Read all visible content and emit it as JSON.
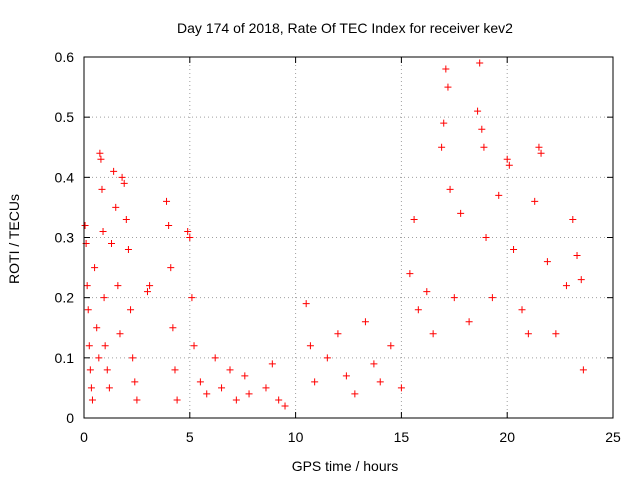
{
  "chart_data": {
    "type": "scatter",
    "title": "Day 174 of 2018, Rate Of TEC Index for receiver kev2",
    "xlabel": "GPS time / hours",
    "ylabel": "ROTI / TECUs",
    "xlim": [
      0,
      25
    ],
    "ylim": [
      0,
      0.6
    ],
    "xticks": [
      0,
      5,
      10,
      15,
      20,
      25
    ],
    "yticks": [
      0,
      0.1,
      0.2,
      0.3,
      0.4,
      0.5,
      0.6
    ],
    "xtick_labels": [
      "0",
      "5",
      "10",
      "15",
      "20",
      "25"
    ],
    "ytick_labels": [
      "0",
      "0.1",
      "0.2",
      "0.3",
      "0.4",
      "0.5",
      "0.6"
    ],
    "grid": true,
    "marker": "+",
    "series": [
      {
        "color": "#ff0000",
        "points": [
          [
            0.05,
            0.32
          ],
          [
            0.1,
            0.29
          ],
          [
            0.15,
            0.22
          ],
          [
            0.2,
            0.18
          ],
          [
            0.25,
            0.12
          ],
          [
            0.3,
            0.08
          ],
          [
            0.35,
            0.05
          ],
          [
            0.4,
            0.03
          ],
          [
            0.5,
            0.25
          ],
          [
            0.6,
            0.15
          ],
          [
            0.7,
            0.1
          ],
          [
            0.75,
            0.44
          ],
          [
            0.8,
            0.43
          ],
          [
            0.85,
            0.38
          ],
          [
            0.9,
            0.31
          ],
          [
            0.95,
            0.2
          ],
          [
            1.0,
            0.12
          ],
          [
            1.1,
            0.08
          ],
          [
            1.2,
            0.05
          ],
          [
            1.3,
            0.29
          ],
          [
            1.4,
            0.41
          ],
          [
            1.5,
            0.35
          ],
          [
            1.6,
            0.22
          ],
          [
            1.7,
            0.14
          ],
          [
            1.8,
            0.4
          ],
          [
            1.9,
            0.39
          ],
          [
            2.0,
            0.33
          ],
          [
            2.1,
            0.28
          ],
          [
            2.2,
            0.18
          ],
          [
            2.3,
            0.1
          ],
          [
            2.4,
            0.06
          ],
          [
            2.5,
            0.03
          ],
          [
            3.0,
            0.21
          ],
          [
            3.1,
            0.22
          ],
          [
            3.9,
            0.36
          ],
          [
            4.0,
            0.32
          ],
          [
            4.1,
            0.25
          ],
          [
            4.2,
            0.15
          ],
          [
            4.3,
            0.08
          ],
          [
            4.4,
            0.03
          ],
          [
            4.9,
            0.31
          ],
          [
            5.0,
            0.3
          ],
          [
            5.1,
            0.2
          ],
          [
            5.2,
            0.12
          ],
          [
            5.5,
            0.06
          ],
          [
            5.8,
            0.04
          ],
          [
            6.2,
            0.1
          ],
          [
            6.5,
            0.05
          ],
          [
            6.9,
            0.08
          ],
          [
            7.2,
            0.03
          ],
          [
            7.6,
            0.07
          ],
          [
            7.8,
            0.04
          ],
          [
            8.6,
            0.05
          ],
          [
            8.9,
            0.09
          ],
          [
            9.2,
            0.03
          ],
          [
            9.5,
            0.02
          ],
          [
            10.5,
            0.19
          ],
          [
            10.7,
            0.12
          ],
          [
            10.9,
            0.06
          ],
          [
            11.5,
            0.1
          ],
          [
            12.0,
            0.14
          ],
          [
            12.4,
            0.07
          ],
          [
            12.8,
            0.04
          ],
          [
            13.3,
            0.16
          ],
          [
            13.7,
            0.09
          ],
          [
            14.0,
            0.06
          ],
          [
            14.5,
            0.12
          ],
          [
            15.0,
            0.05
          ],
          [
            15.4,
            0.24
          ],
          [
            15.6,
            0.33
          ],
          [
            15.8,
            0.18
          ],
          [
            16.2,
            0.21
          ],
          [
            16.5,
            0.14
          ],
          [
            16.9,
            0.45
          ],
          [
            17.0,
            0.49
          ],
          [
            17.1,
            0.58
          ],
          [
            17.2,
            0.55
          ],
          [
            17.3,
            0.38
          ],
          [
            17.5,
            0.2
          ],
          [
            17.8,
            0.34
          ],
          [
            18.2,
            0.16
          ],
          [
            18.6,
            0.51
          ],
          [
            18.7,
            0.59
          ],
          [
            18.8,
            0.48
          ],
          [
            18.9,
            0.45
          ],
          [
            19.0,
            0.3
          ],
          [
            19.3,
            0.2
          ],
          [
            19.6,
            0.37
          ],
          [
            20.0,
            0.43
          ],
          [
            20.1,
            0.42
          ],
          [
            20.3,
            0.28
          ],
          [
            20.7,
            0.18
          ],
          [
            21.0,
            0.14
          ],
          [
            21.3,
            0.36
          ],
          [
            21.5,
            0.45
          ],
          [
            21.6,
            0.44
          ],
          [
            21.9,
            0.26
          ],
          [
            22.3,
            0.14
          ],
          [
            22.8,
            0.22
          ],
          [
            23.1,
            0.33
          ],
          [
            23.3,
            0.27
          ],
          [
            23.5,
            0.23
          ],
          [
            23.6,
            0.08
          ]
        ]
      }
    ]
  }
}
